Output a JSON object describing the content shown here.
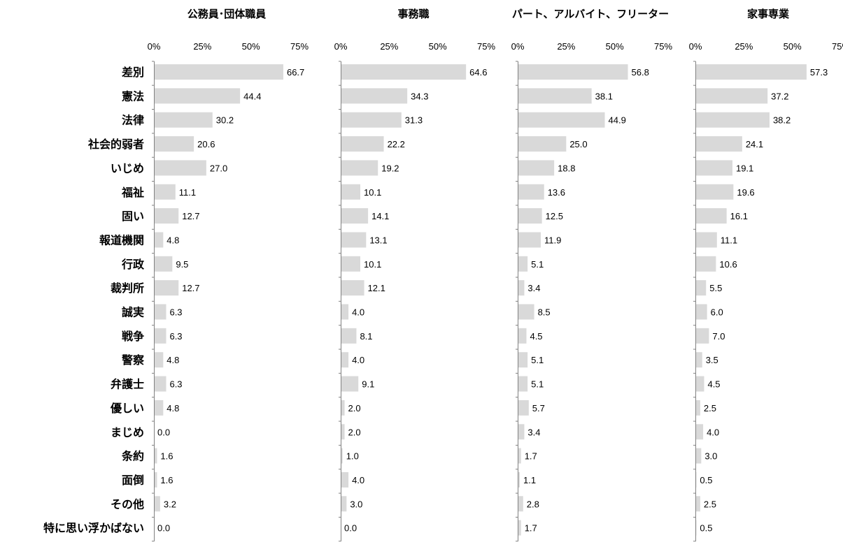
{
  "chart_data": {
    "type": "bar",
    "orientation": "horizontal",
    "categories": [
      "差別",
      "憲法",
      "法律",
      "社会的弱者",
      "いじめ",
      "福祉",
      "固い",
      "報道機関",
      "行政",
      "裁判所",
      "誠実",
      "戦争",
      "警察",
      "弁護士",
      "優しい",
      "まじめ",
      "条約",
      "面倒",
      "その他",
      "特に思い浮かばない"
    ],
    "xlim": [
      0,
      75
    ],
    "ticks": [
      "0%",
      "25%",
      "50%",
      "75%"
    ],
    "tick_values": [
      0,
      25,
      50,
      75
    ],
    "bar_color": "#d9d9d9",
    "panels": [
      {
        "title": "公務員･団体職員",
        "values": [
          66.7,
          44.4,
          30.2,
          20.6,
          27.0,
          11.1,
          12.7,
          4.8,
          9.5,
          12.7,
          6.3,
          6.3,
          4.8,
          6.3,
          4.8,
          0.0,
          1.6,
          1.6,
          3.2,
          0.0
        ],
        "value_labels": [
          "66.7",
          "44.4",
          "30.2",
          "20.6",
          "27.0",
          "11.1",
          "12.7",
          "4.8",
          "9.5",
          "12.7",
          "6.3",
          "6.3",
          "4.8",
          "6.3",
          "4.8",
          "0.0",
          "1.6",
          "1.6",
          "3.2",
          "0.0"
        ]
      },
      {
        "title": "事務職",
        "values": [
          64.6,
          34.3,
          31.3,
          22.2,
          19.2,
          10.1,
          14.1,
          13.1,
          10.1,
          12.1,
          4.0,
          8.1,
          4.0,
          9.1,
          2.0,
          2.0,
          1.0,
          4.0,
          3.0,
          0.0
        ],
        "value_labels": [
          "64.6",
          "34.3",
          "31.3",
          "22.2",
          "19.2",
          "10.1",
          "14.1",
          "13.1",
          "10.1",
          "12.1",
          "4.0",
          "8.1",
          "4.0",
          "9.1",
          "2.0",
          "2.0",
          "1.0",
          "4.0",
          "3.0",
          "0.0"
        ]
      },
      {
        "title": "パート、アルバイト、フリーター",
        "values": [
          56.8,
          38.1,
          44.9,
          25.0,
          18.8,
          13.6,
          12.5,
          11.9,
          5.1,
          3.4,
          8.5,
          4.5,
          5.1,
          5.1,
          5.7,
          3.4,
          1.7,
          1.1,
          2.8,
          1.7
        ],
        "value_labels": [
          "56.8",
          "38.1",
          "44.9",
          "25.0",
          "18.8",
          "13.6",
          "12.5",
          "11.9",
          "5.1",
          "3.4",
          "8.5",
          "4.5",
          "5.1",
          "5.1",
          "5.7",
          "3.4",
          "1.7",
          "1.1",
          "2.8",
          "1.7"
        ]
      },
      {
        "title": "家事専業",
        "values": [
          57.3,
          37.2,
          38.2,
          24.1,
          19.1,
          19.6,
          16.1,
          11.1,
          10.6,
          5.5,
          6.0,
          7.0,
          3.5,
          4.5,
          2.5,
          4.0,
          3.0,
          0.5,
          2.5,
          0.5
        ],
        "value_labels": [
          "57.3",
          "37.2",
          "38.2",
          "24.1",
          "19.1",
          "19.6",
          "16.1",
          "11.1",
          "10.6",
          "5.5",
          "6.0",
          "7.0",
          "3.5",
          "4.5",
          "2.5",
          "4.0",
          "3.0",
          "0.5",
          "2.5",
          "0.5"
        ]
      }
    ]
  }
}
